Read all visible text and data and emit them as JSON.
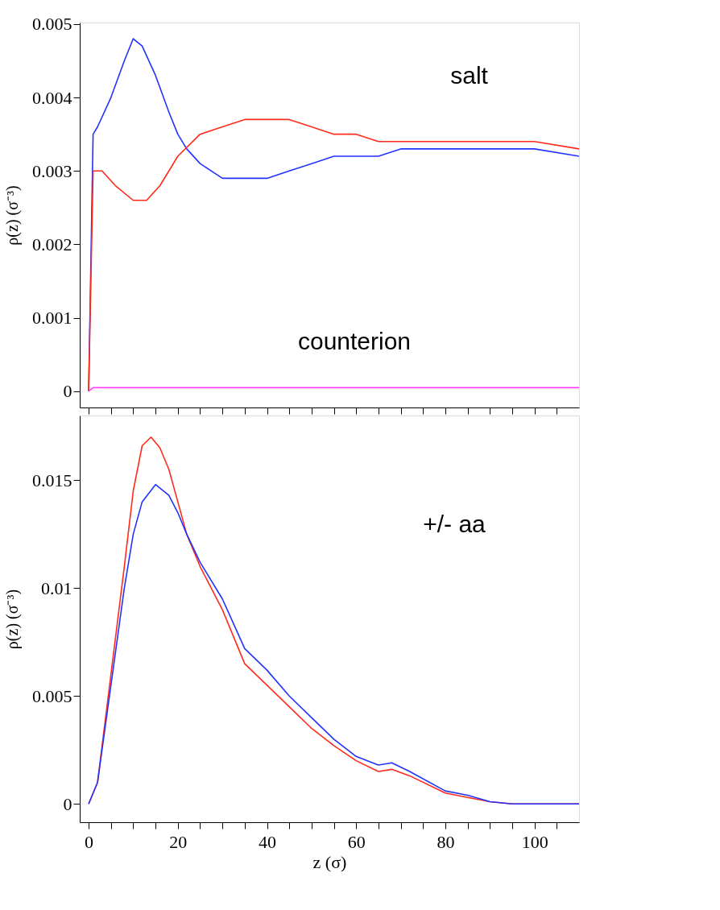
{
  "chart_data": [
    {
      "type": "line",
      "ylabel": "ρ(z) (σ⁻³)",
      "tick_labels": "y",
      "legend": false,
      "grid": false,
      "xlim": [
        -2,
        110
      ],
      "ylim": [
        -0.00022,
        0.00502
      ],
      "xticks": [
        0,
        {
          "value": 5,
          "label": null
        },
        {
          "value": 10,
          "label": null
        },
        {
          "value": 15,
          "label": null
        },
        20,
        {
          "value": 25,
          "label": null
        },
        {
          "value": 30,
          "label": null
        },
        {
          "value": 35,
          "label": null
        },
        40,
        {
          "value": 45,
          "label": null
        },
        {
          "value": 50,
          "label": null
        },
        {
          "value": 55,
          "label": null
        },
        60,
        {
          "value": 65,
          "label": null
        },
        {
          "value": 70,
          "label": null
        },
        {
          "value": 75,
          "label": null
        },
        80,
        {
          "value": 85,
          "label": null
        },
        {
          "value": 90,
          "label": null
        },
        {
          "value": 95,
          "label": null
        },
        100,
        {
          "value": 105,
          "label": null
        }
      ],
      "yticks": [
        0,
        0.001,
        0.002,
        0.003,
        0.004,
        0.005
      ],
      "annotations": [
        "salt",
        "counterion"
      ],
      "series": [
        {
          "color": "#2233ff",
          "x": [
            0,
            1,
            2,
            5,
            8,
            10,
            12,
            15,
            18,
            20,
            22,
            25,
            30,
            35,
            40,
            45,
            50,
            55,
            60,
            65,
            70,
            80,
            90,
            100,
            110
          ],
          "values": [
            0,
            0.0035,
            0.0036,
            0.004,
            0.0045,
            0.0048,
            0.0047,
            0.0043,
            0.0038,
            0.0035,
            0.0033,
            0.0031,
            0.0029,
            0.0029,
            0.0029,
            0.003,
            0.0031,
            0.0032,
            0.0032,
            0.0032,
            0.0033,
            0.0033,
            0.0033,
            0.0033,
            0.0032
          ]
        },
        {
          "color": "#ff2a1a",
          "x": [
            0,
            1,
            3,
            6,
            10,
            13,
            16,
            20,
            25,
            30,
            35,
            40,
            45,
            50,
            55,
            60,
            65,
            70,
            80,
            90,
            100,
            110
          ],
          "values": [
            0,
            0.003,
            0.003,
            0.0028,
            0.0026,
            0.0026,
            0.0028,
            0.0032,
            0.0035,
            0.0036,
            0.0037,
            0.0037,
            0.0037,
            0.0036,
            0.0035,
            0.0035,
            0.0034,
            0.0034,
            0.0034,
            0.0034,
            0.0034,
            0.0033
          ]
        },
        {
          "color": "#ff44ff",
          "x": [
            0,
            1,
            20,
            40,
            60,
            80,
            100,
            110
          ],
          "values": [
            0,
            5e-05,
            5e-05,
            5e-05,
            5e-05,
            5e-05,
            5e-05,
            5e-05
          ]
        }
      ]
    },
    {
      "type": "line",
      "xlabel": "z (σ)",
      "ylabel": "ρ(z) (σ⁻³)",
      "legend": false,
      "grid": false,
      "xlim": [
        -2,
        110
      ],
      "ylim": [
        -0.00085,
        0.018
      ],
      "xticks": [
        0,
        {
          "value": 5,
          "label": null
        },
        {
          "value": 10,
          "label": null
        },
        {
          "value": 15,
          "label": null
        },
        20,
        {
          "value": 25,
          "label": null
        },
        {
          "value": 30,
          "label": null
        },
        {
          "value": 35,
          "label": null
        },
        40,
        {
          "value": 45,
          "label": null
        },
        {
          "value": 50,
          "label": null
        },
        {
          "value": 55,
          "label": null
        },
        60,
        {
          "value": 65,
          "label": null
        },
        {
          "value": 70,
          "label": null
        },
        {
          "value": 75,
          "label": null
        },
        80,
        {
          "value": 85,
          "label": null
        },
        {
          "value": 90,
          "label": null
        },
        {
          "value": 95,
          "label": null
        },
        100,
        {
          "value": 105,
          "label": null
        }
      ],
      "yticks": [
        0,
        0.005,
        0.01,
        0.015
      ],
      "annotations": [
        "+/- aa"
      ],
      "series": [
        {
          "color": "#ff2a1a",
          "x": [
            0,
            2,
            5,
            8,
            10,
            12,
            14,
            16,
            18,
            20,
            22,
            25,
            30,
            35,
            40,
            45,
            50,
            55,
            60,
            65,
            68,
            72,
            80,
            85,
            90,
            95,
            110
          ],
          "values": [
            0,
            0.001,
            0.006,
            0.011,
            0.0145,
            0.0166,
            0.017,
            0.0165,
            0.0155,
            0.014,
            0.0125,
            0.011,
            0.009,
            0.0065,
            0.0055,
            0.0045,
            0.0035,
            0.0027,
            0.002,
            0.0015,
            0.0016,
            0.0013,
            0.0005,
            0.0003,
            0.0001,
            0,
            0
          ]
        },
        {
          "color": "#2233ff",
          "x": [
            0,
            2,
            5,
            8,
            10,
            12,
            15,
            18,
            20,
            22,
            25,
            30,
            35,
            40,
            45,
            50,
            55,
            60,
            65,
            68,
            72,
            80,
            85,
            90,
            95,
            110
          ],
          "values": [
            0,
            0.001,
            0.0055,
            0.01,
            0.0125,
            0.014,
            0.0148,
            0.0143,
            0.0135,
            0.0125,
            0.0112,
            0.0095,
            0.0072,
            0.0062,
            0.005,
            0.004,
            0.003,
            0.0022,
            0.0018,
            0.0019,
            0.0015,
            0.0006,
            0.0004,
            0.0001,
            0,
            0
          ]
        }
      ]
    }
  ]
}
